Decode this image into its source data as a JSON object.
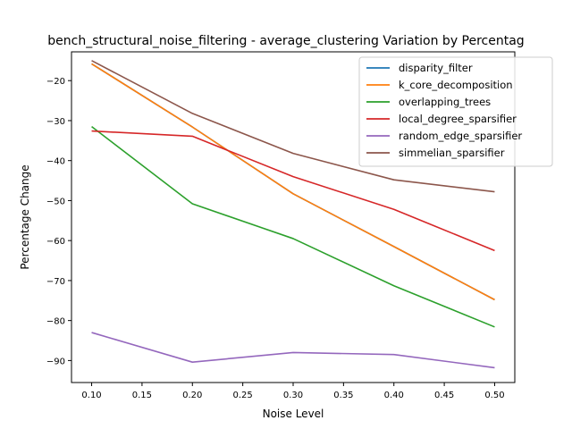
{
  "chart_data": {
    "type": "line",
    "title": "bench_structural_noise_filtering - average_clustering Variation by Percentag",
    "xlabel": "Noise Level",
    "ylabel": "Percentage Change",
    "x": [
      0.1,
      0.2,
      0.3,
      0.4,
      0.5
    ],
    "xlim": [
      0.08,
      0.52
    ],
    "ylim": [
      -95.5,
      -12.8
    ],
    "xticks": [
      "0.10",
      "0.15",
      "0.20",
      "0.25",
      "0.30",
      "0.35",
      "0.40",
      "0.45",
      "0.50"
    ],
    "xtick_values": [
      0.1,
      0.15,
      0.2,
      0.25,
      0.3,
      0.35,
      0.4,
      0.45,
      0.5
    ],
    "yticks": [
      "−90",
      "−80",
      "−70",
      "−60",
      "−50",
      "−40",
      "−30",
      "−20"
    ],
    "ytick_values": [
      -90,
      -80,
      -70,
      -60,
      -50,
      -40,
      -30,
      -20
    ],
    "grid": false,
    "legend_position": "top-right",
    "series": [
      {
        "name": "disparity_filter",
        "color": "#1f77b4",
        "values": [
          -15.8,
          -31.6,
          -48.3,
          -61.5,
          -74.8
        ]
      },
      {
        "name": "k_core_decomposition",
        "color": "#ff7f0e",
        "values": [
          -15.8,
          -31.6,
          -48.3,
          -61.5,
          -74.8
        ]
      },
      {
        "name": "overlapping_trees",
        "color": "#2ca02c",
        "values": [
          -31.5,
          -50.8,
          -59.5,
          -71.3,
          -81.6
        ]
      },
      {
        "name": "local_degree_sparsifier",
        "color": "#d62728",
        "values": [
          -32.6,
          -33.9,
          -44.0,
          -52.2,
          -62.5
        ]
      },
      {
        "name": "random_edge_sparsifier",
        "color": "#9467bd",
        "values": [
          -83.0,
          -90.4,
          -88.0,
          -88.5,
          -91.8
        ]
      },
      {
        "name": "simmelian_sparsifier",
        "color": "#8c564b",
        "values": [
          -15.0,
          -28.2,
          -38.2,
          -44.8,
          -47.8
        ]
      }
    ]
  }
}
